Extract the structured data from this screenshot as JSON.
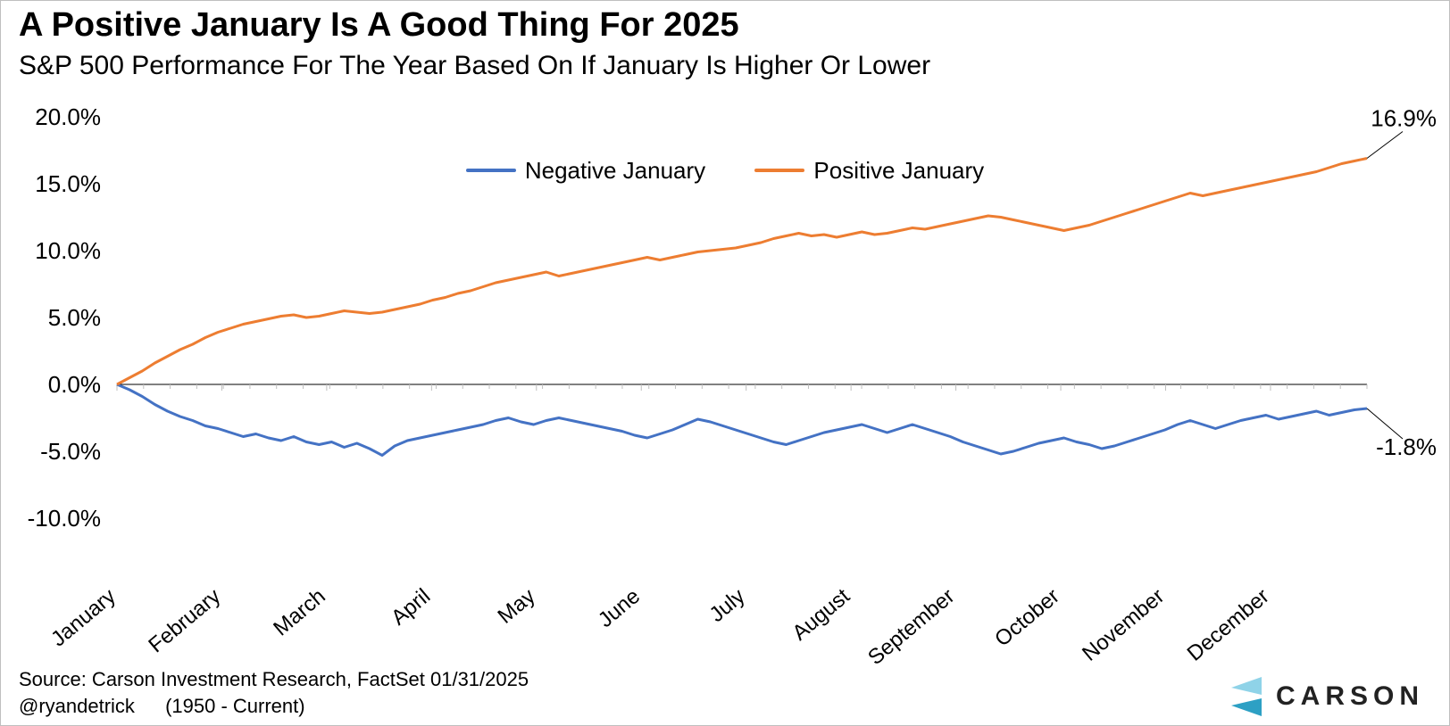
{
  "title": "A Positive January Is A Good Thing For 2025",
  "subtitle": "S&P 500 Performance For The Year Based On If January Is Higher Or Lower",
  "source": "Source: Carson Investment Research, FactSet 01/31/2025",
  "attribution_handle": "@ryandetrick",
  "attribution_period": "(1950 - Current)",
  "logo_text": "CARSON",
  "legend": {
    "neg_label": "Negative January",
    "pos_label": "Positive January"
  },
  "chart": {
    "type": "line",
    "background_color": "#ffffff",
    "axis_color": "#000000",
    "tick_color": "#bfbfbf",
    "line_width": 3,
    "ylim": [
      -10,
      20
    ],
    "yticks": [
      -10,
      -5,
      0,
      5,
      10,
      15,
      20
    ],
    "ytick_labels": [
      "-10.0%",
      "-5.0%",
      "0.0%",
      "5.0%",
      "10.0%",
      "15.0%",
      "20.0%"
    ],
    "x_categories": [
      "January",
      "February",
      "March",
      "April",
      "May",
      "June",
      "July",
      "August",
      "September",
      "October",
      "November",
      "December"
    ],
    "x_label_rotation_deg": -40,
    "x_label_fontsize": 24,
    "y_label_fontsize": 26,
    "colors": {
      "negative": "#4472c4",
      "positive": "#ed7d31"
    },
    "end_labels": {
      "positive": "16.9%",
      "negative": "-1.8%"
    },
    "series": {
      "negative": [
        0.0,
        -0.4,
        -0.9,
        -1.5,
        -2.0,
        -2.4,
        -2.7,
        -3.1,
        -3.3,
        -3.6,
        -3.9,
        -3.7,
        -4.0,
        -4.2,
        -3.9,
        -4.3,
        -4.5,
        -4.3,
        -4.7,
        -4.4,
        -4.8,
        -5.3,
        -4.6,
        -4.2,
        -4.0,
        -3.8,
        -3.6,
        -3.4,
        -3.2,
        -3.0,
        -2.7,
        -2.5,
        -2.8,
        -3.0,
        -2.7,
        -2.5,
        -2.7,
        -2.9,
        -3.1,
        -3.3,
        -3.5,
        -3.8,
        -4.0,
        -3.7,
        -3.4,
        -3.0,
        -2.6,
        -2.8,
        -3.1,
        -3.4,
        -3.7,
        -4.0,
        -4.3,
        -4.5,
        -4.2,
        -3.9,
        -3.6,
        -3.4,
        -3.2,
        -3.0,
        -3.3,
        -3.6,
        -3.3,
        -3.0,
        -3.3,
        -3.6,
        -3.9,
        -4.3,
        -4.6,
        -4.9,
        -5.2,
        -5.0,
        -4.7,
        -4.4,
        -4.2,
        -4.0,
        -4.3,
        -4.5,
        -4.8,
        -4.6,
        -4.3,
        -4.0,
        -3.7,
        -3.4,
        -3.0,
        -2.7,
        -3.0,
        -3.3,
        -3.0,
        -2.7,
        -2.5,
        -2.3,
        -2.6,
        -2.4,
        -2.2,
        -2.0,
        -2.3,
        -2.1,
        -1.9,
        -1.8
      ],
      "positive": [
        0.0,
        0.5,
        1.0,
        1.6,
        2.1,
        2.6,
        3.0,
        3.5,
        3.9,
        4.2,
        4.5,
        4.7,
        4.9,
        5.1,
        5.2,
        5.0,
        5.1,
        5.3,
        5.5,
        5.4,
        5.3,
        5.4,
        5.6,
        5.8,
        6.0,
        6.3,
        6.5,
        6.8,
        7.0,
        7.3,
        7.6,
        7.8,
        8.0,
        8.2,
        8.4,
        8.1,
        8.3,
        8.5,
        8.7,
        8.9,
        9.1,
        9.3,
        9.5,
        9.3,
        9.5,
        9.7,
        9.9,
        10.0,
        10.1,
        10.2,
        10.4,
        10.6,
        10.9,
        11.1,
        11.3,
        11.1,
        11.2,
        11.0,
        11.2,
        11.4,
        11.2,
        11.3,
        11.5,
        11.7,
        11.6,
        11.8,
        12.0,
        12.2,
        12.4,
        12.6,
        12.5,
        12.3,
        12.1,
        11.9,
        11.7,
        11.5,
        11.7,
        11.9,
        12.2,
        12.5,
        12.8,
        13.1,
        13.4,
        13.7,
        14.0,
        14.3,
        14.1,
        14.3,
        14.5,
        14.7,
        14.9,
        15.1,
        15.3,
        15.5,
        15.7,
        15.9,
        16.2,
        16.5,
        16.7,
        16.9
      ]
    }
  }
}
